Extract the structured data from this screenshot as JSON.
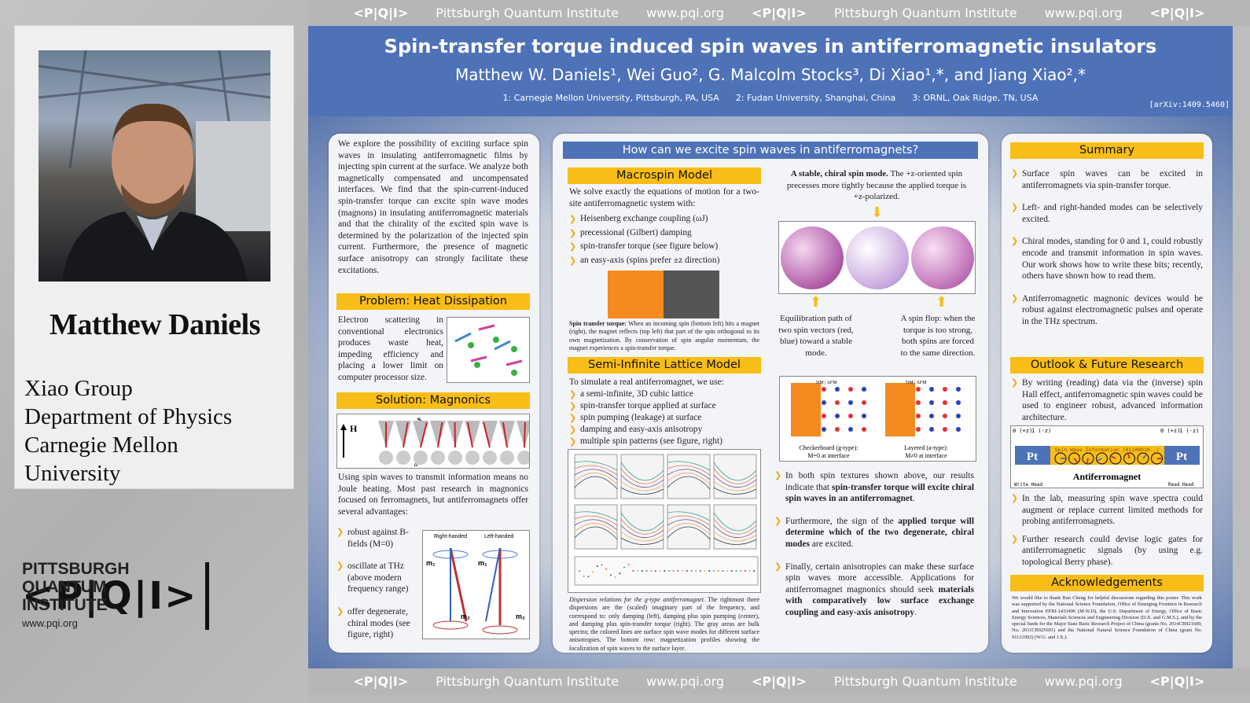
{
  "sidebar": {
    "name": "Matthew Daniels",
    "affiliation": [
      "Xiao Group",
      "Department of Physics",
      "Carnegie Mellon",
      "University"
    ],
    "logo": {
      "symbol": "<P|Q|I>",
      "line1": "PITTSBURGH",
      "line2": "QUANTUM",
      "line3": "INSTITUTE",
      "url": "www.pqi.org"
    }
  },
  "strip": {
    "logo": "<P|Q|I>",
    "name": "Pittsburgh Quantum Institute",
    "url": "www.pqi.org"
  },
  "header": {
    "title": "Spin-transfer torque induced spin waves in antiferromagnetic insulators",
    "authors": "Matthew W. Daniels¹, Wei Guo², G. Malcolm Stocks³, Di Xiao¹,*, and Jiang Xiao²,*",
    "institutions": "1: Carnegie Mellon University, Pittsburgh, PA, USA      2: Fudan University, Shanghai, China      3: ORNL, Oak Ridge, TN, USA",
    "arxiv": "[arXiv:1409.5460]"
  },
  "col1": {
    "intro": "We explore the possibility of exciting surface spin waves in insulating antiferromagnetic films by injecting spin current at the surface. We analyze both magnetically compensated and uncompensated interfaces. We find that the spin-current-induced spin-transfer torque can excite spin wave modes (magnons) in insulating antiferromagnetic materials and that the chirality of the excited spin wave is determined by the polarization of the injected spin current. Furthermore, the presence of magnetic surface anisotropy can strongly facilitate these excitations.",
    "problem_title": "Problem: Heat Dissipation",
    "problem_text": "Electron scattering in conventional electronics produces waste heat, impeding efficiency and placing a lower limit on computer processor size.",
    "solution_title": "Solution: Magnonics",
    "solution_fig": {
      "H": "H",
      "s": "sᵢ",
      "a": "a"
    },
    "solution_text": "Using spin waves to transmit information means no Joule heating. Most past research in magnonics focused on ferromagnets, but antiferromagnets offer several advantages:",
    "advantages": [
      "robust against B-fields (M=0)",
      "oscillate at THz (above modern frequency range)",
      "offer degenerate, chiral modes (see figure, right)"
    ],
    "chiral_fig": {
      "right": "Right-handed",
      "left": "Left-handed",
      "m1": "m₁",
      "m2": "m₂"
    }
  },
  "col2": {
    "heading": "How can we excite spin waves in antiferromagnets?",
    "macro_title": "Macrospin Model",
    "macro_text": "We solve exactly the equations of motion for a two-site antiferromagnetic system with:",
    "macro_items": [
      "Heisenberg exchange coupling (ωJ)",
      "precessional (Gilbert) damping",
      "spin-transfer torque (see figure below)",
      "an easy-axis (spins prefer ±z direction)"
    ],
    "stt_caption_bold": "Spin transfer torque:",
    "stt_caption": "When an incoming spin (bottom left) hits a magnet (right), the magnet reflects (top left) that part of the spin orthogonal to its own magnetization. By conservation of spin angular momentum, the magnet experiences a spin-transfer torque.",
    "lattice_title": "Semi-Infinite Lattice Model",
    "lattice_text": "To simulate a real antiferromagnet, we use:",
    "lattice_items": [
      "a semi-infinite, 3D cubic lattice",
      "spin-transfer torque applied at surface",
      "spin pumping (leakage) at surface",
      "damping and easy-axis anisotropy",
      "multiple spin patterns (see figure, right)"
    ],
    "disp_caption_italic": "Dispersion relations for the g-type antiferromagnet.",
    "disp_caption": "The rightmost three dispersions are the (scaled) imaginary part of the frequency, and correspond to: only damping (left), damping plus spin pumping (center), and damping plus spin-transfer torque (right). The gray areas are bulk spectra; the colored lines are surface spin wave modes for different surface anisotropies. The bottom row: magnetization profiles showing the localization of spin waves to the surface layer.",
    "stable_bold": "A stable, chiral spin mode.",
    "stable_text": "The +z-oriented spin precesses more tightly because the applied torque is +z-polarized.",
    "equil": "Equilibration path of two spin vectors (red, blue) toward a stable mode.",
    "flop": "A spin flop: when the torque is too strong, both spins are forced to the same direction.",
    "lattice_fig": {
      "nm_afm": "NM | AFM",
      "left_caption_1": "Checkerboard (g-type):",
      "left_caption_2": "M=0 at interface",
      "right_caption_1": "Layered (a-type):",
      "right_caption_2": "M≠0 at interface"
    },
    "results": [
      {
        "pre": "In both spin textures shown above, our results indicate that ",
        "bold": "spin-transfer torque will excite chiral spin waves in an antiferromagnet",
        "post": "."
      },
      {
        "pre": "Furthermore, the sign of the ",
        "bold": "applied torque will determine which of the two degenerate, chiral modes",
        "post": " are excited."
      },
      {
        "pre": "Finally, certain anisotropies can make these surface spin waves more accessible. Applications for antiferromagnet magnonics should seek ",
        "bold": "materials with comparatively low surface exchange coupling and easy-axis anisotropy",
        "post": "."
      }
    ]
  },
  "col3": {
    "summary_title": "Summary",
    "summary": [
      "Surface spin waves can be excited in antiferromagnets via spin-transfer torque.",
      "Left- and right-handed modes can be selectively excited.",
      "Chiral modes, standing for 0 and 1, could robustly encode and transmit information in spin waves. Our work shows how to write these bits; recently, others have shown how to read them.",
      "Antiferromagnetic magnonic devices would be robust against electromagnetic pulses and operate in the THz spectrum."
    ],
    "outlook_title": "Outlook & Future Research",
    "outlook_1": "By writing (reading) data via the (inverse) spin Hall effect, antiferromagnetic spin waves could be used to engineer robust, advanced information architecture.",
    "device": {
      "zero": "0 (+z)",
      "one": "1 (-z)",
      "pt": "Pt",
      "info": "Spin Wave Information (01100010..)",
      "afm": "Antiferromagnet",
      "write": "Write Head",
      "read": "Read Head"
    },
    "outlook_items": [
      "In the lab, measuring spin wave spectra could augment or replace current limited methods for probing antiferromagnets.",
      "Further research could devise logic gates for antiferromagnetic signals (by using e.g. topological Berry phase)."
    ],
    "ack_title": "Acknowledgements",
    "ack": "We would like to thank Ran Cheng for helpful discussions regarding this poster. This work was supported by the National Science Foundation, Office of Emerging Frontiers in Research and Innovation EFRI-1433496 (M.W.D), the U.S. Department of Energy, Office of Basic Energy Sciences, Materials Sciences and Engineering Division (D.X. and G.M.S.), and by the special funds for the Major State Basic Research Project of China (grants No. 2014CB921600, No. 2011CB925601) and the National Natural Science Foundation of China (grant No. 91121002) (W.G. and J.X.)."
  },
  "colors": {
    "header_blue": "#4e72b8",
    "section_yellow": "#f8bd16",
    "bullet_orange": "#f3a712",
    "strip_gray": "#b6b6b6"
  }
}
